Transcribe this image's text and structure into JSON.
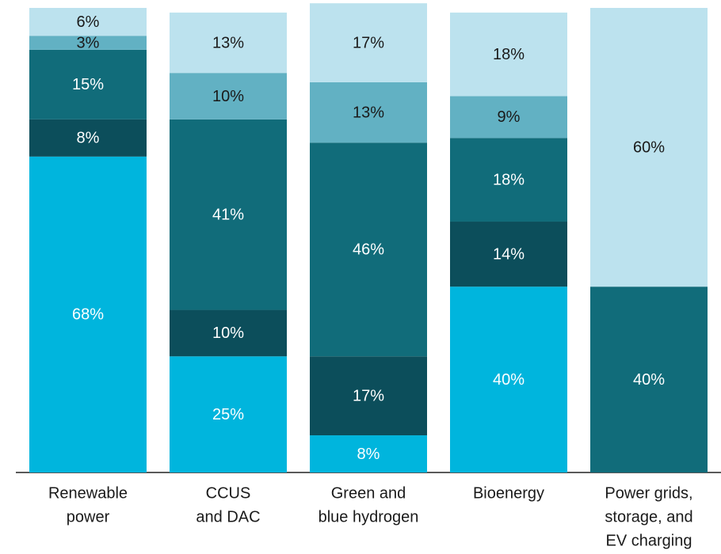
{
  "chart_data": {
    "type": "stacked_bar",
    "categories": [
      [
        "Renewable",
        "power"
      ],
      [
        "CCUS",
        "and DAC"
      ],
      [
        "Green and",
        "blue hydrogen"
      ],
      [
        "Bioenergy"
      ],
      [
        "Power grids,",
        "storage, and",
        "EV charging"
      ]
    ],
    "ylim": [
      0,
      100
    ],
    "series": [
      {
        "color": "#00b5dd",
        "label_color": "#ffffff",
        "values": [
          68,
          25,
          8,
          40,
          null
        ],
        "value_labels": [
          "68%",
          "25%",
          "8%",
          "40%",
          null
        ]
      },
      {
        "color": "#0c4e5b",
        "label_color": "#ffffff",
        "values": [
          8,
          10,
          17,
          14,
          null
        ],
        "value_labels": [
          "8%",
          "10%",
          "17%",
          "14%",
          null
        ]
      },
      {
        "color": "#116c7a",
        "label_color": "#ffffff",
        "values": [
          15,
          41,
          46,
          18,
          40
        ],
        "value_labels": [
          "15%",
          "41%",
          "46%",
          "18%",
          "40%"
        ]
      },
      {
        "color": "#62b1c3",
        "label_color": "#1a1a1a",
        "values": [
          3,
          10,
          13,
          9,
          null
        ],
        "value_labels": [
          "3%",
          "10%",
          "13%",
          "9%",
          null
        ]
      },
      {
        "color": "#bce2ee",
        "label_color": "#1a1a1a",
        "values": [
          6,
          13,
          17,
          18,
          60
        ],
        "value_labels": [
          "6%",
          "13%",
          "17%",
          "18%",
          "60%"
        ]
      }
    ]
  }
}
